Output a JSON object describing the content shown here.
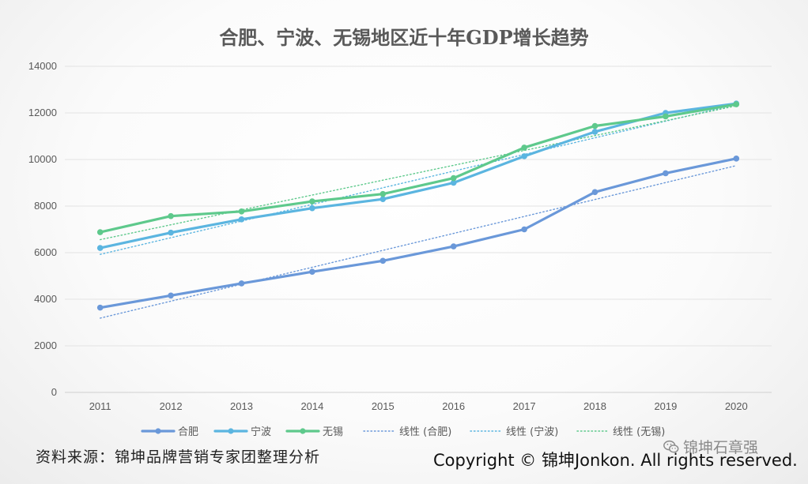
{
  "chart_data": {
    "type": "line",
    "title": "合肥、宁波、无锡地区近十年GDP增长趋势",
    "categories": [
      "2011",
      "2012",
      "2013",
      "2014",
      "2015",
      "2016",
      "2017",
      "2018",
      "2019",
      "2020"
    ],
    "y_ticks": [
      0,
      2000,
      4000,
      6000,
      8000,
      10000,
      12000,
      14000
    ],
    "ylim": [
      0,
      14000
    ],
    "grid": true,
    "legend_position": "bottom",
    "series": [
      {
        "name": "合肥",
        "color": "#6a98d9",
        "values": [
          3640,
          4160,
          4680,
          5180,
          5650,
          6270,
          7000,
          8600,
          9410,
          10040
        ]
      },
      {
        "name": "宁波",
        "color": "#5bb5e0",
        "values": [
          6200,
          6860,
          7430,
          7910,
          8300,
          9000,
          10140,
          11190,
          12000,
          12400
        ]
      },
      {
        "name": "无锡",
        "color": "#5ec98c",
        "values": [
          6880,
          7570,
          7770,
          8200,
          8520,
          9200,
          10510,
          11440,
          11850,
          12370
        ]
      }
    ],
    "trendlines": [
      {
        "name": "线性 (合肥)",
        "color": "#6a98d9"
      },
      {
        "name": "线性 (宁波)",
        "color": "#5bb5e0"
      },
      {
        "name": "线性 (无锡)",
        "color": "#5ec98c"
      }
    ]
  },
  "footer": {
    "source": "资料来源：锦坤品牌营销专家团整理分析",
    "copyright": "Copyright © 锦坤Jonkon. All rights reserved.",
    "watermark": "锦坤石章强",
    "watermark_icon": "wechat-icon"
  }
}
